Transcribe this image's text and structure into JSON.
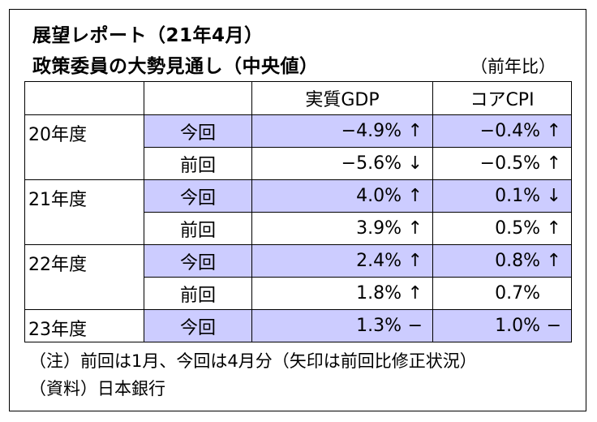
{
  "title_line1": "展望レポート（21年4月）",
  "title_line2": "政策委員の大勢見通し（中央値）",
  "unit": "（前年比）",
  "columns": {
    "gdp": "実質GDP",
    "cpi": "コアCPI"
  },
  "rows": [
    {
      "year": "20年度",
      "kind": "今回",
      "gdp": "−4.9%",
      "gdp_arrow": "↑",
      "cpi": "−0.4%",
      "cpi_arrow": "↑"
    },
    {
      "year": "",
      "kind": "前回",
      "gdp": "−5.6%",
      "gdp_arrow": "↓",
      "cpi": "−0.5%",
      "cpi_arrow": "↑"
    },
    {
      "year": "21年度",
      "kind": "今回",
      "gdp": "4.0%",
      "gdp_arrow": "↑",
      "cpi": "0.1%",
      "cpi_arrow": "↓"
    },
    {
      "year": "",
      "kind": "前回",
      "gdp": "3.9%",
      "gdp_arrow": "↑",
      "cpi": "0.5%",
      "cpi_arrow": "↑"
    },
    {
      "year": "22年度",
      "kind": "今回",
      "gdp": "2.4%",
      "gdp_arrow": "↑",
      "cpi": "0.8%",
      "cpi_arrow": "↑"
    },
    {
      "year": "",
      "kind": "前回",
      "gdp": "1.8%",
      "gdp_arrow": "↑",
      "cpi": "0.7%",
      "cpi_arrow": ""
    },
    {
      "year": "23年度",
      "kind": "今回",
      "gdp": "1.3%",
      "gdp_arrow": "−",
      "cpi": "1.0%",
      "cpi_arrow": "−"
    }
  ],
  "note": "（注）前回は1月、今回は4月分（矢印は前回比修正状況）",
  "source": "（資料）日本銀行",
  "colors": {
    "highlight": "#ccccff",
    "border": "#000000"
  }
}
